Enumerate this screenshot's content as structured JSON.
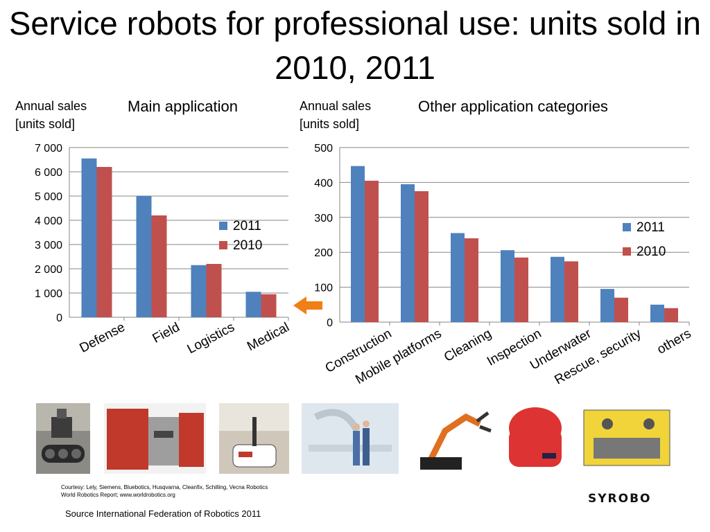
{
  "page": {
    "title": "Service robots for professional use: units sold in 2010, 2011",
    "source": "Source International Federation of Robotics 2011",
    "credits_line1": "Courtesy: Lely, Siemens, Bluebotics, Husqvarna, Cleanfix, Schilling, Vecna Robotics",
    "credits_line2": "World Robotics Report; www.worldrobotics.org",
    "logo_text": "SYROBO",
    "photos": [
      "defense-robot",
      "milking-robot",
      "logistics-robot",
      "medical-robot",
      "demolition-robot",
      "security-robot",
      "underwater-robot"
    ]
  },
  "chart_data": [
    {
      "type": "bar",
      "title": "Main application",
      "ylabel_line1": "Annual sales",
      "ylabel_line2": "[units sold]",
      "categories": [
        "Defense",
        "Field",
        "Logistics",
        "Medical"
      ],
      "ylim": [
        0,
        7000
      ],
      "yticks": [
        "0",
        "1 000",
        "2 000",
        "3 000",
        "4 000",
        "5 000",
        "6 000",
        "7 000"
      ],
      "grid": true,
      "legend": "right",
      "series": [
        {
          "name": "2011",
          "color": "#4f81bd",
          "values": [
            6550,
            5000,
            2150,
            1050
          ]
        },
        {
          "name": "2010",
          "color": "#c0504d",
          "values": [
            6200,
            4200,
            2200,
            950
          ]
        }
      ]
    },
    {
      "type": "bar",
      "title": "Other application categories",
      "ylabel_line1": "Annual sales",
      "ylabel_line2": "[units sold]",
      "categories": [
        "Construction",
        "Mobile platforms",
        "Cleaning",
        "Inspection",
        "Underwater",
        "Rescue, security",
        "others"
      ],
      "ylim": [
        0,
        500
      ],
      "yticks": [
        "0",
        "100",
        "200",
        "300",
        "400",
        "500"
      ],
      "grid": true,
      "legend": "right",
      "series": [
        {
          "name": "2011",
          "color": "#4f81bd",
          "values": [
            447,
            395,
            255,
            206,
            187,
            95,
            50
          ]
        },
        {
          "name": "2010",
          "color": "#c0504d",
          "values": [
            405,
            375,
            240,
            185,
            174,
            70,
            40
          ]
        }
      ]
    }
  ],
  "arrow_color": "#f07f16"
}
